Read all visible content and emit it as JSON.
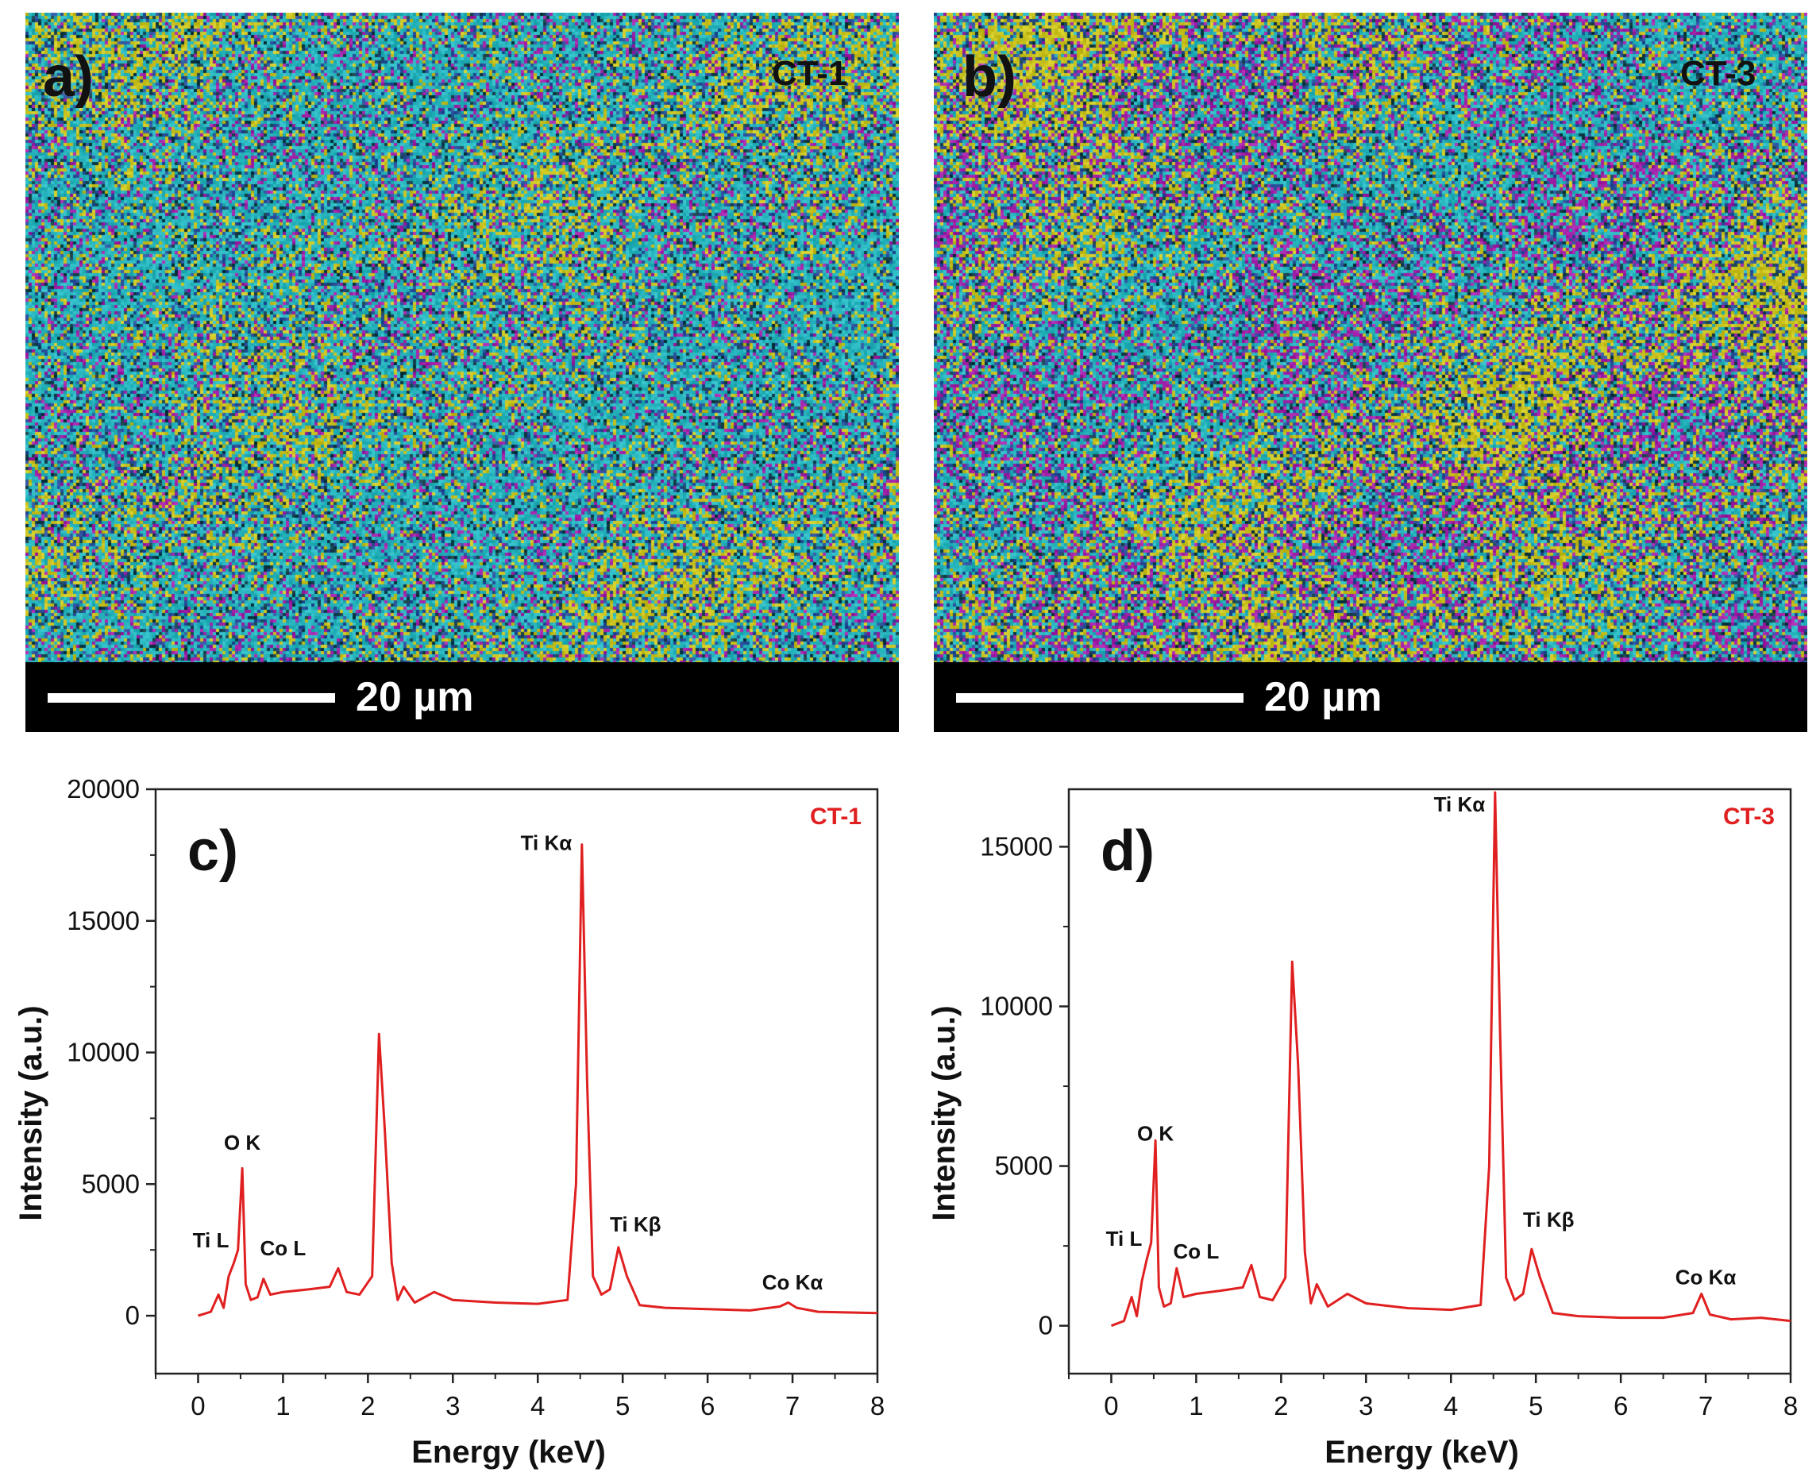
{
  "panels": {
    "a": {
      "letter": "a)",
      "sample": "CT-1",
      "scale": "20 µm"
    },
    "b": {
      "letter": "b)",
      "sample": "CT-3",
      "scale": "20 µm"
    }
  },
  "map_colors": {
    "teal": "#27b4bd",
    "yellow": "#c9c21e",
    "magenta": "#a321a8",
    "blue": "#2a4f9a",
    "dark": "#123c48"
  },
  "chart_data": [
    {
      "type": "line",
      "panel": "c)",
      "title": "CT-1",
      "xlabel": "Energy (keV)",
      "ylabel": "Intensity (a.u.)",
      "xlim": [
        -0.5,
        8
      ],
      "ylim": [
        -2200,
        20000
      ],
      "xticks": [
        0,
        1,
        2,
        3,
        4,
        5,
        6,
        7,
        8
      ],
      "yticks": [
        0,
        5000,
        10000,
        15000,
        20000
      ],
      "color": "#e02020",
      "series": [
        {
          "name": "CT-1",
          "x": [
            0,
            0.15,
            0.24,
            0.3,
            0.36,
            0.42,
            0.47,
            0.52,
            0.56,
            0.62,
            0.7,
            0.77,
            0.85,
            1.0,
            1.3,
            1.55,
            1.65,
            1.75,
            1.9,
            2.05,
            2.13,
            2.2,
            2.28,
            2.35,
            2.42,
            2.55,
            2.78,
            3.0,
            3.5,
            4.0,
            4.35,
            4.45,
            4.52,
            4.58,
            4.65,
            4.75,
            4.85,
            4.95,
            5.05,
            5.2,
            5.5,
            6.0,
            6.5,
            6.85,
            6.95,
            7.05,
            7.3,
            8.0
          ],
          "y": [
            0,
            150,
            800,
            300,
            1500,
            2000,
            2500,
            5600,
            1200,
            600,
            700,
            1400,
            800,
            900,
            1000,
            1100,
            1800,
            900,
            800,
            1500,
            10700,
            7000,
            2000,
            600,
            1100,
            500,
            900,
            600,
            500,
            450,
            600,
            5000,
            17900,
            9000,
            1500,
            800,
            1000,
            2600,
            1500,
            400,
            300,
            250,
            200,
            350,
            500,
            300,
            150,
            100
          ]
        }
      ],
      "annotations": [
        {
          "text": "Ti L",
          "x": 0.15,
          "y": 2600
        },
        {
          "text": "O K",
          "x": 0.52,
          "y": 6300
        },
        {
          "text": "Co L",
          "x": 1.0,
          "y": 2300
        },
        {
          "text": "Ti Kα",
          "x": 4.1,
          "y": 17700
        },
        {
          "text": "Ti Kβ",
          "x": 5.15,
          "y": 3200
        },
        {
          "text": "Co Kα",
          "x": 7.0,
          "y": 1000
        }
      ]
    },
    {
      "type": "line",
      "panel": "d)",
      "title": "CT-3",
      "xlabel": "Energy (keV)",
      "ylabel": "Intensity (a.u.)",
      "xlim": [
        -0.5,
        8
      ],
      "ylim": [
        -1500,
        16800
      ],
      "xticks": [
        0,
        1,
        2,
        3,
        4,
        5,
        6,
        7,
        8
      ],
      "yticks": [
        0,
        5000,
        10000,
        15000
      ],
      "color": "#e02020",
      "series": [
        {
          "name": "CT-3",
          "x": [
            0,
            0.15,
            0.24,
            0.3,
            0.36,
            0.42,
            0.47,
            0.52,
            0.56,
            0.62,
            0.7,
            0.77,
            0.85,
            1.0,
            1.3,
            1.55,
            1.65,
            1.75,
            1.9,
            2.05,
            2.13,
            2.2,
            2.28,
            2.35,
            2.42,
            2.55,
            2.78,
            3.0,
            3.5,
            4.0,
            4.35,
            4.45,
            4.52,
            4.58,
            4.65,
            4.75,
            4.85,
            4.95,
            5.05,
            5.2,
            5.5,
            6.0,
            6.5,
            6.85,
            6.95,
            7.05,
            7.3,
            7.65,
            8.0
          ],
          "y": [
            0,
            150,
            900,
            300,
            1400,
            2100,
            2600,
            5800,
            1200,
            600,
            700,
            1800,
            900,
            1000,
            1100,
            1200,
            1900,
            900,
            800,
            1500,
            11400,
            8200,
            2300,
            700,
            1300,
            600,
            1000,
            700,
            550,
            500,
            650,
            5000,
            16700,
            9000,
            1500,
            800,
            1000,
            2400,
            1500,
            400,
            300,
            250,
            250,
            400,
            1000,
            350,
            200,
            250,
            150
          ]
        }
      ],
      "annotations": [
        {
          "text": "Ti L",
          "x": 0.15,
          "y": 2500
        },
        {
          "text": "O K",
          "x": 0.52,
          "y": 5800
        },
        {
          "text": "Co L",
          "x": 1.0,
          "y": 2100
        },
        {
          "text": "Ti Kα",
          "x": 4.1,
          "y": 16100
        },
        {
          "text": "Ti Kβ",
          "x": 5.15,
          "y": 3100
        },
        {
          "text": "Co Kα",
          "x": 7.0,
          "y": 1300
        }
      ]
    }
  ]
}
